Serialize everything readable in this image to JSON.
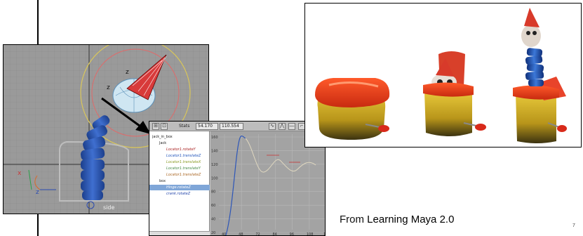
{
  "viewport": {
    "label": "side",
    "axis_labels": {
      "x": "x",
      "z": "z"
    },
    "gizmo_labels": [
      "z",
      "z"
    ]
  },
  "graph_editor": {
    "toolbar": {
      "stats_label": "Stats",
      "value_1": "54.170",
      "value_2": "110.554"
    },
    "outliner": [
      {
        "label": "jack_in_box",
        "indent": 0,
        "color": "#222222",
        "selected": false
      },
      {
        "label": "Jack",
        "indent": 1,
        "color": "#222222",
        "selected": false
      },
      {
        "label": "Locator1.rotateY",
        "indent": 2,
        "color": "#aa2222",
        "selected": false
      },
      {
        "label": "Locator1.translateZ",
        "indent": 2,
        "color": "#2255bb",
        "selected": false
      },
      {
        "label": "Locator1.translateX",
        "indent": 2,
        "color": "#889922",
        "selected": false
      },
      {
        "label": "Locator1.translateY",
        "indent": 2,
        "color": "#448844",
        "selected": false
      },
      {
        "label": "Locator1.translateZ",
        "indent": 2,
        "color": "#aa6622",
        "selected": false
      },
      {
        "label": "box",
        "indent": 1,
        "color": "#222222",
        "selected": false
      },
      {
        "label": "Hinge.rotateZ",
        "indent": 2,
        "color": "#ffffff",
        "selected": true
      },
      {
        "label": "crank.rotateZ",
        "indent": 2,
        "color": "#2244aa",
        "selected": false
      }
    ],
    "y_ticks": [
      "160",
      "140",
      "120",
      "100",
      "80",
      "60",
      "40",
      "20"
    ],
    "x_ticks": [
      "40",
      "48",
      "72",
      "84",
      "96",
      "108",
      "120"
    ]
  },
  "caption": {
    "prefix": "From ",
    "book": "Learning Maya 2.0"
  },
  "page_number": "7"
}
